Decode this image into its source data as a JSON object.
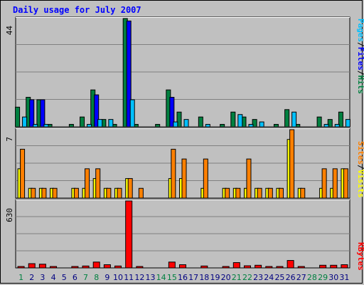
{
  "title": "Daily usage for July 2007",
  "colors": {
    "hits": "#008040",
    "files": "#0000ff",
    "pages": "#00c0ff",
    "visits": "#ffff00",
    "sites": "#ff8000",
    "kbytes": "#ff0000",
    "weekend_day_label": "#008040",
    "weekday_label": "#000080",
    "panel_bg": "#c0c0c0",
    "grid": "#808080"
  },
  "legends": {
    "top": [
      "Pages",
      "/",
      "Files",
      "/",
      "Hits"
    ],
    "middle": [
      "Sites",
      "/",
      "Visits"
    ],
    "bottom": [
      "KBytes"
    ]
  },
  "chart_data": [
    {
      "type": "bar",
      "title": "Daily usage for July 2007",
      "panel": "top",
      "ymax_label": "44",
      "ylim": [
        0,
        44
      ],
      "categories": [
        "1",
        "2",
        "3",
        "4",
        "5",
        "6",
        "7",
        "8",
        "9",
        "10",
        "11",
        "12",
        "13",
        "14",
        "15",
        "16",
        "17",
        "18",
        "19",
        "20",
        "21",
        "22",
        "23",
        "24",
        "25",
        "26",
        "27",
        "28",
        "29",
        "30",
        "31"
      ],
      "weekend_days": [
        "1",
        "7",
        "8",
        "14",
        "15",
        "21",
        "22",
        "28",
        "29"
      ],
      "series": [
        {
          "name": "Hits",
          "values": [
            8,
            12,
            11,
            1,
            0,
            1,
            4,
            15,
            3,
            1,
            44,
            1,
            0,
            1,
            15,
            6,
            0,
            4,
            0,
            1,
            6,
            4,
            3,
            0,
            1,
            7,
            1,
            0,
            4,
            3,
            6
          ]
        },
        {
          "name": "Files",
          "values": [
            0,
            11,
            11,
            0,
            0,
            0,
            0,
            13,
            0,
            0,
            43,
            0,
            0,
            0,
            12,
            0,
            0,
            0,
            0,
            0,
            0,
            0,
            0,
            0,
            0,
            0,
            0,
            0,
            0,
            0,
            0
          ]
        },
        {
          "name": "Pages",
          "values": [
            4,
            1,
            1,
            0,
            0,
            0,
            1,
            3,
            3,
            0,
            11,
            0,
            0,
            0,
            2,
            3,
            0,
            1,
            0,
            0,
            5,
            1,
            2,
            0,
            0,
            6,
            0,
            0,
            1,
            1,
            3
          ]
        }
      ]
    },
    {
      "type": "bar",
      "panel": "middle",
      "ymax_label": "7",
      "ylim": [
        0,
        7
      ],
      "categories": [
        "1",
        "2",
        "3",
        "4",
        "5",
        "6",
        "7",
        "8",
        "9",
        "10",
        "11",
        "12",
        "13",
        "14",
        "15",
        "16",
        "17",
        "18",
        "19",
        "20",
        "21",
        "22",
        "23",
        "24",
        "25",
        "26",
        "27",
        "28",
        "29",
        "30",
        "31"
      ],
      "series": [
        {
          "name": "Visits",
          "values": [
            3,
            1,
            1,
            1,
            0,
            1,
            1,
            2,
            1,
            1,
            2,
            0,
            0,
            0,
            2,
            2,
            0,
            1,
            0,
            1,
            1,
            1,
            1,
            1,
            1,
            6,
            1,
            0,
            1,
            1,
            3
          ]
        },
        {
          "name": "Sites",
          "values": [
            5,
            1,
            1,
            1,
            0,
            1,
            3,
            3,
            1,
            1,
            2,
            1,
            0,
            0,
            5,
            4,
            0,
            4,
            0,
            1,
            1,
            4,
            1,
            1,
            1,
            7,
            1,
            0,
            3,
            3,
            3
          ]
        }
      ]
    },
    {
      "type": "bar",
      "panel": "bottom",
      "ymax_label": "630",
      "ylim": [
        0,
        630
      ],
      "categories": [
        "1",
        "2",
        "3",
        "4",
        "5",
        "6",
        "7",
        "8",
        "9",
        "10",
        "11",
        "12",
        "13",
        "14",
        "15",
        "16",
        "17",
        "18",
        "19",
        "20",
        "21",
        "22",
        "23",
        "24",
        "25",
        "26",
        "27",
        "28",
        "29",
        "30",
        "31"
      ],
      "series": [
        {
          "name": "KBytes",
          "values": [
            12,
            40,
            35,
            12,
            0,
            12,
            18,
            55,
            30,
            18,
            630,
            12,
            0,
            0,
            55,
            30,
            0,
            18,
            0,
            12,
            50,
            20,
            25,
            12,
            12,
            70,
            12,
            0,
            25,
            25,
            30
          ]
        }
      ]
    }
  ]
}
